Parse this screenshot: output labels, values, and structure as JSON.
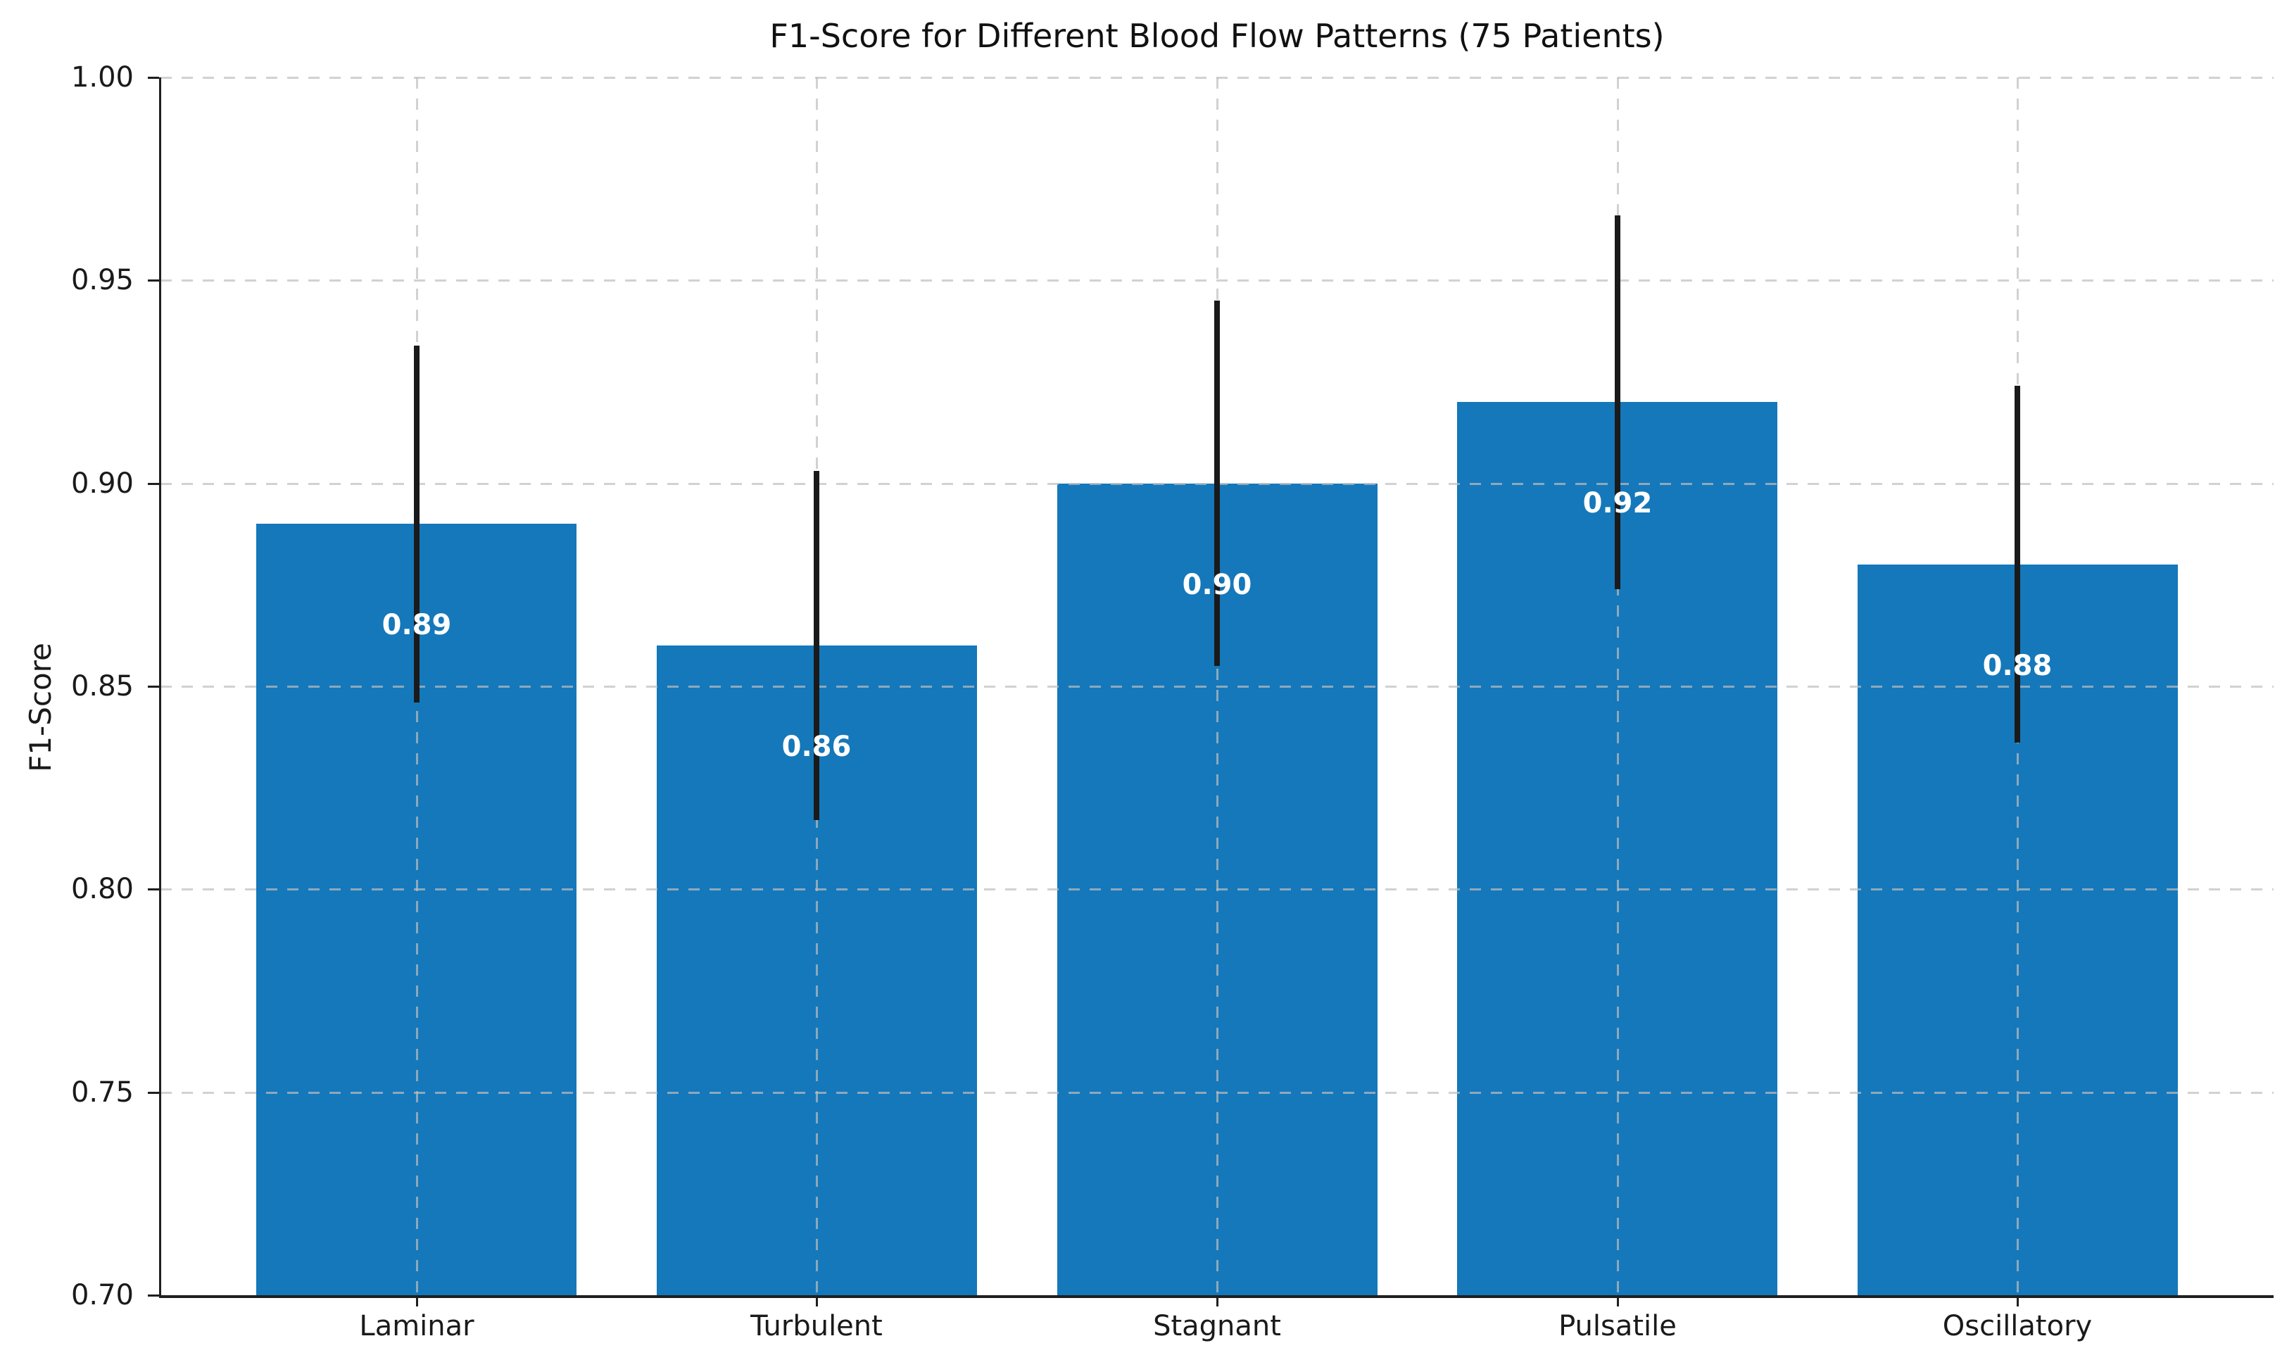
{
  "chart_data": {
    "type": "bar",
    "title": "F1-Score for Different Blood Flow Patterns (75 Patients)",
    "xlabel": "",
    "ylabel": "F1-Score",
    "categories": [
      "Laminar",
      "Turbulent",
      "Stagnant",
      "Pulsatile",
      "Oscillatory"
    ],
    "values": [
      0.89,
      0.86,
      0.9,
      0.92,
      0.88
    ],
    "errors": [
      0.044,
      0.043,
      0.045,
      0.046,
      0.044
    ],
    "value_labels": [
      "0.89",
      "0.86",
      "0.90",
      "0.92",
      "0.88"
    ],
    "ylim": [
      0.7,
      1.0
    ],
    "yticks": [
      0.7,
      0.75,
      0.8,
      0.85,
      0.9,
      0.95,
      1.0
    ],
    "ytick_labels": [
      "0.70",
      "0.75",
      "0.80",
      "0.85",
      "0.90",
      "0.95",
      "1.00"
    ],
    "grid": true,
    "grid_style": "dashed",
    "legend": "none",
    "bar_color": "#1578ba",
    "error_color": "#1a1a1a",
    "grid_color": "rgba(190,190,190,0.7)",
    "spine_color": "#1f1f1f",
    "tick_color": "#1f1f1f",
    "text_color": "#1a1a1a",
    "value_label_color": "#ffffff",
    "background_color": "#ffffff"
  }
}
